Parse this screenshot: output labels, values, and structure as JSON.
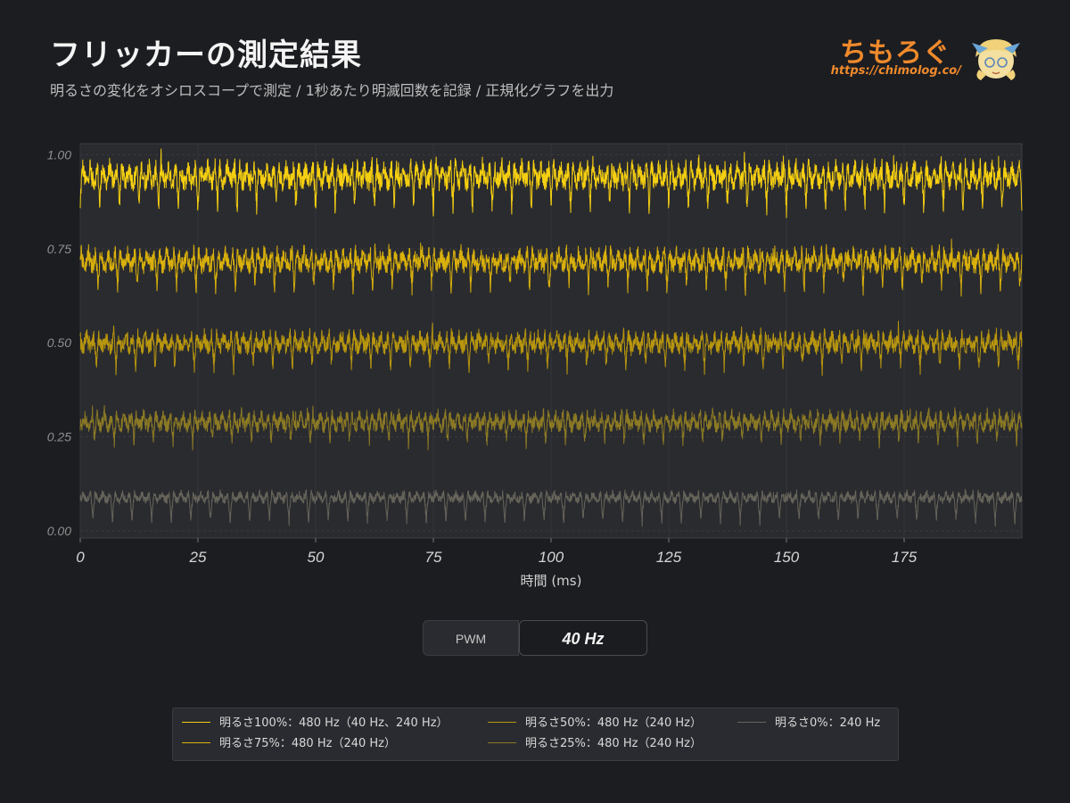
{
  "header": {
    "title": "フリッカーの測定結果",
    "subtitle": "明るさの変化をオシロスコープで測定 / 1秒あたり明滅回数を記録 / 正規化グラフを出力"
  },
  "logo": {
    "text": "ちもろぐ",
    "url": "https://chimolog.co/",
    "color": "#f08a2c",
    "mascot_icon": "mascot-icon"
  },
  "controls": {
    "label": "PWM",
    "value": "40 Hz"
  },
  "chart_data": {
    "type": "line",
    "title": "",
    "xlabel": "時間 (ms)",
    "ylabel": "",
    "xlim": [
      0,
      200
    ],
    "ylim": [
      0,
      1.02
    ],
    "x_ticks": [
      0,
      25,
      50,
      75,
      100,
      125,
      150,
      175
    ],
    "y_ticks": [
      0.0,
      0.25,
      0.5,
      0.75,
      1.0
    ],
    "y_tick_labels": [
      "0.00",
      "0.25",
      "0.50",
      "0.75",
      "1.00"
    ],
    "grid": true,
    "legend_position": "bottom",
    "series": [
      {
        "name": "明るさ100%：480 Hz（40 Hz、240 Hz）",
        "color": "#f5cf11",
        "high": 0.97,
        "low": 0.85,
        "dip": 0.85,
        "noise": 0.025,
        "dip_freq_hz": 240,
        "ripple_freq_hz": 480
      },
      {
        "name": "明るさ75%：480 Hz（240 Hz）",
        "color": "#d9b00c",
        "high": 0.74,
        "low": 0.64,
        "dip": 0.64,
        "noise": 0.022,
        "dip_freq_hz": 240,
        "ripple_freq_hz": 480
      },
      {
        "name": "明るさ50%：480 Hz（240 Hz）",
        "color": "#b8960e",
        "high": 0.52,
        "low": 0.43,
        "dip": 0.43,
        "noise": 0.02,
        "dip_freq_hz": 240,
        "ripple_freq_hz": 480
      },
      {
        "name": "明るさ25%：480 Hz（240 Hz）",
        "color": "#8c7a24",
        "high": 0.31,
        "low": 0.22,
        "dip": 0.23,
        "noise": 0.018,
        "dip_freq_hz": 240,
        "ripple_freq_hz": 480
      },
      {
        "name": "明るさ0%：240 Hz",
        "color": "#66645a",
        "high": 0.1,
        "low": 0.05,
        "dip": 0.02,
        "noise": 0.01,
        "dip_freq_hz": 240,
        "ripple_freq_hz": 480
      }
    ]
  }
}
